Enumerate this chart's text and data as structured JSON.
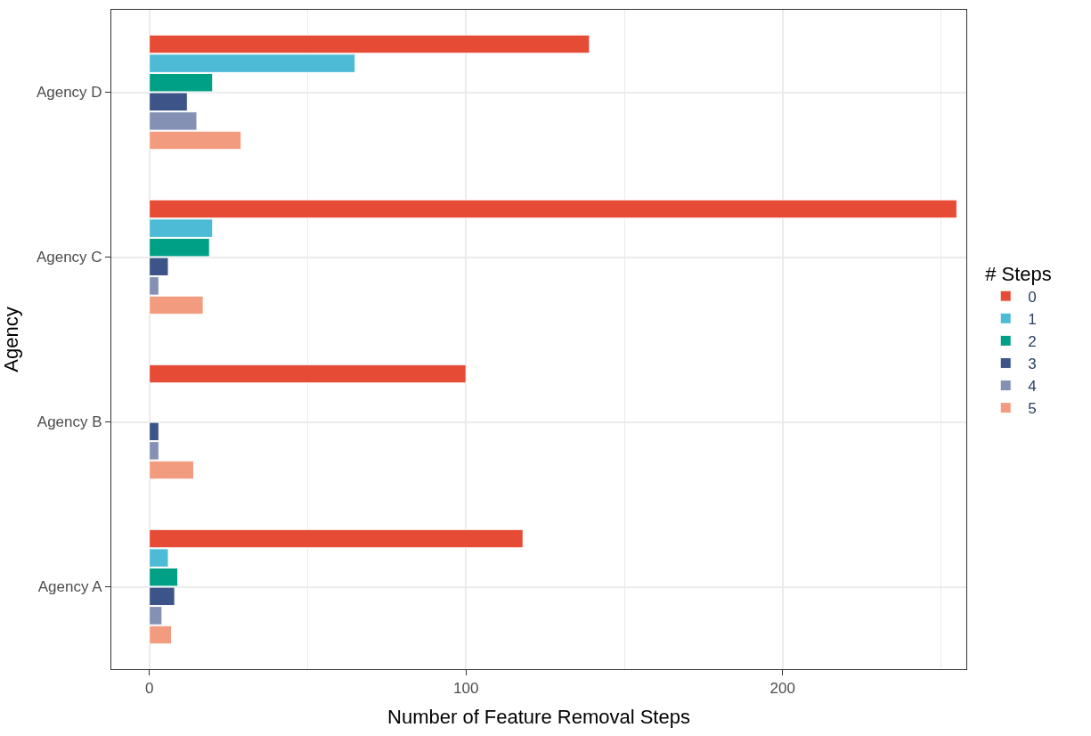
{
  "chart_data": {
    "type": "bar",
    "orientation": "horizontal",
    "xlabel": "Number of Feature Removal Steps",
    "ylabel": "Agency",
    "legend_title": "# Steps",
    "legend": "right",
    "grid": true,
    "categories": [
      "Agency D",
      "Agency C",
      "Agency B",
      "Agency A"
    ],
    "series": [
      {
        "name": "0",
        "color": "#e64b35",
        "values": [
          139,
          255,
          100,
          118
        ]
      },
      {
        "name": "1",
        "color": "#4dbbd5",
        "values": [
          65,
          20,
          null,
          6
        ]
      },
      {
        "name": "2",
        "color": "#00a087",
        "values": [
          20,
          19,
          null,
          9
        ]
      },
      {
        "name": "3",
        "color": "#3c5488",
        "values": [
          12,
          6,
          3,
          8
        ]
      },
      {
        "name": "4",
        "color": "#8491b4",
        "values": [
          15,
          3,
          3,
          4
        ]
      },
      {
        "name": "5",
        "color": "#f39b7f",
        "values": [
          29,
          17,
          14,
          7
        ]
      }
    ],
    "xlim": [
      -12,
      258
    ],
    "xticks": [
      0,
      100,
      200
    ]
  }
}
